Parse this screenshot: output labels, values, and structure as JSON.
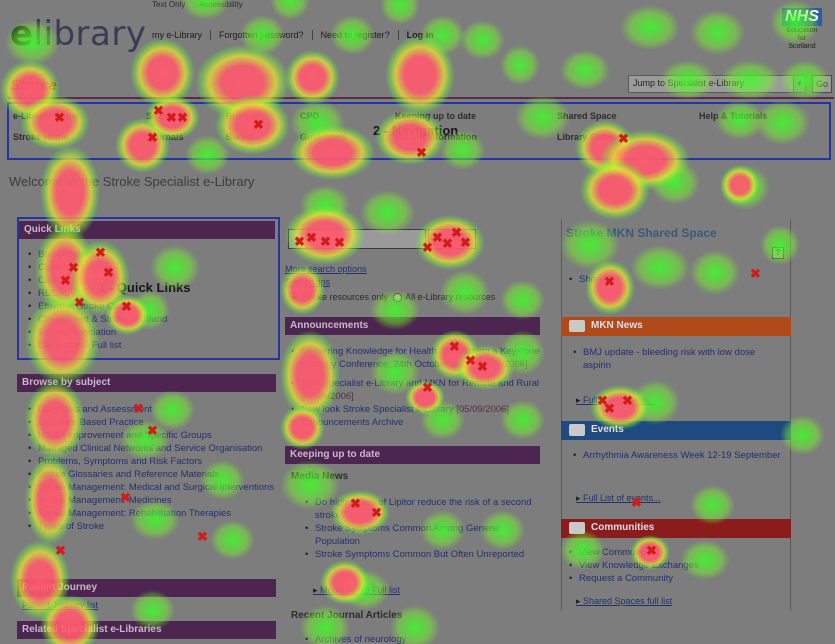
{
  "header": {
    "util_links": [
      "Text Only",
      "Accessibility"
    ],
    "logo_prefix": "e",
    "logo_text": "library",
    "top_links": [
      "my e-Library",
      "Forgotten password?",
      "Need to register?",
      "Log in"
    ],
    "nhs_logo": "NHS",
    "nhs_sub": [
      "Education",
      "for",
      "Scotland"
    ]
  },
  "section_title": "Stroke",
  "jump": {
    "value": "Jump to Specialist e-Library",
    "go_label": "Go"
  },
  "nav": {
    "row1": [
      "e-Library Home",
      "Search",
      "Browse",
      "CPD",
      "Keeping up to date",
      "Shared Space",
      "Help & Tutorials"
    ],
    "row2": [
      "Stroke Home",
      "Journals",
      "Books",
      "Guidelines",
      "Patient Information",
      "Library Services"
    ],
    "annotation": "2 - Navigation"
  },
  "welcome": "Welcome to the Stroke Specialist e-Library",
  "quick_links": {
    "heading": "Quick Links",
    "annotation": "1 - Quick Links",
    "items": [
      "Bad Database",
      "Cochrane Library",
      "Clinical Evidence",
      "RECAL",
      "Effective Stroke Care",
      "Chest Heart & Stroke Scotland",
      "Stroke Association",
      "Databases - Full list"
    ]
  },
  "browse": {
    "heading": "Browse by subject",
    "items": [
      "Diagnosis and Assessment",
      "Evidence Based Practice",
      "Health Improvement and Specific Groups",
      "Managed Clinical Networks and Service Organisation",
      "Problems, Symptoms and Risk Factors",
      "Stroke Glossaries and Reference Materials",
      "Stroke Management: Medical and Surgical Interventions",
      "Stroke Management: Medicines",
      "Stroke Management: Rehabilitation Therapies",
      "Types of Stroke"
    ]
  },
  "patient": {
    "heading": "Patient Journey",
    "link": "Patient Journey list"
  },
  "related": {
    "heading": "Related Specialist e-Libraries"
  },
  "search": {
    "button": "Search",
    "more_options": "More search options",
    "tips": "Search tips",
    "opt_stroke": "Stroke resources only",
    "opt_all": "All e-Library resources"
  },
  "announcements": {
    "heading": "Announcements",
    "items": [
      {
        "text": "Delivering Knowledge for Health: Developing a Keystone Strategy Conference, 24th October 2006",
        "date": "[12/09/2006]"
      },
      {
        "text": "New Specialist e-Library and MKN for Remote and Rural",
        "date": "[07/09/2006]"
      },
      {
        "text": "New look Stroke Specialist e-Library",
        "date": "[05/09/2006]"
      },
      {
        "text": "Announcements Archive",
        "date": ""
      }
    ]
  },
  "keeping": {
    "heading": "Keeping up to date",
    "media_heading": "Media News",
    "media_items": [
      "Do high doses of Lipitor reduce the risk of a second stroke?",
      "Stroke Symptoms Common Among General Population",
      "Stroke Symptoms Common But Often Unreported"
    ],
    "media_full": "Media News Full list",
    "recent_heading": "Recent Journal Articles",
    "recent_items": [
      "Archives of neurology"
    ]
  },
  "shared": {
    "title": "Stroke MKN Shared Space",
    "help": "?",
    "items": [
      "Shop"
    ]
  },
  "mkn_news": {
    "heading": "MKN News",
    "items": [
      "BMJ update - bleeding risk with low dose aspirin"
    ],
    "full": "Full List of news..."
  },
  "events": {
    "heading": "Events",
    "items": [
      "Arrhythmia Awareness Week 12-19 September"
    ],
    "full": "Full List of events..."
  },
  "communities": {
    "heading": "Communities",
    "items": [
      "View Communities",
      "View Knowledge Exchanges",
      "Request a Community"
    ],
    "full": "Shared Spaces full list"
  },
  "colors": {
    "bar_purple": "#4c2550",
    "events_blue": "#1e4a80",
    "news_orange": "#b04a18",
    "communities_red": "#8a1c1c",
    "annotation_box": "#2434a0",
    "fixation_marker": "#d21c1c"
  },
  "fixation_marker": "✖"
}
